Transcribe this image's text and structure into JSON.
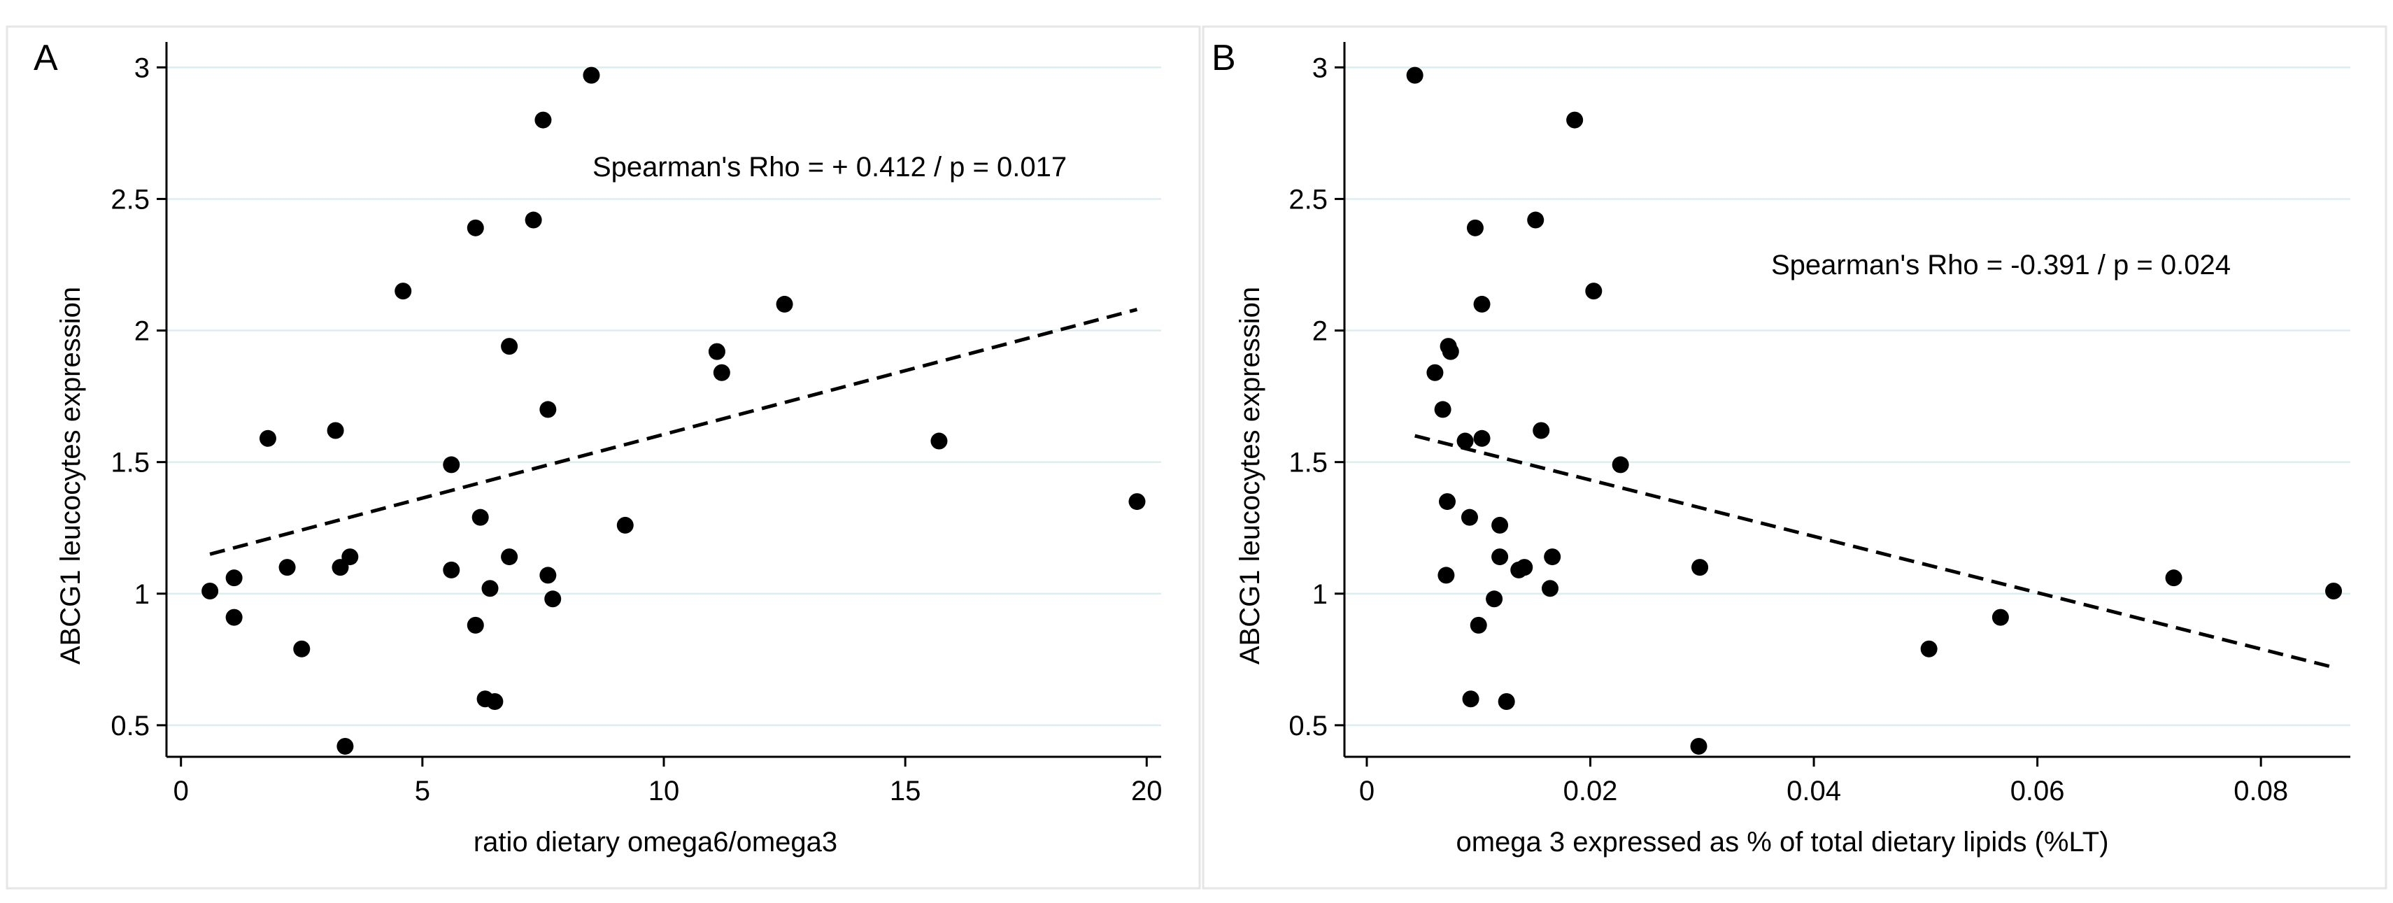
{
  "chart_data": [
    {
      "type": "scatter",
      "panel_label": "A",
      "xlabel": "ratio dietary omega6/omega3",
      "ylabel": "ABCG1 leucocytes expression",
      "xlim": [
        -0.3,
        20.3
      ],
      "ylim": [
        0.38,
        3.07
      ],
      "xticks": [
        0,
        5,
        10,
        15,
        20
      ],
      "xtick_labels": [
        "0",
        "5",
        "10",
        "15",
        "20"
      ],
      "yticks": [
        0.5,
        1,
        1.5,
        2,
        2.5,
        3
      ],
      "ytick_labels": [
        "0.5",
        "1",
        "1.5",
        "2",
        "2.5",
        "3"
      ],
      "grid": true,
      "annotation": "Spearman's Rho = + 0.412 / p = 0.017",
      "points": [
        [
          0.6,
          1.01
        ],
        [
          1.1,
          0.91
        ],
        [
          1.1,
          1.06
        ],
        [
          1.8,
          1.59
        ],
        [
          2.2,
          1.1
        ],
        [
          2.5,
          0.79
        ],
        [
          3.2,
          1.62
        ],
        [
          3.3,
          1.1
        ],
        [
          3.4,
          0.42
        ],
        [
          3.5,
          1.14
        ],
        [
          4.6,
          2.15
        ],
        [
          5.6,
          1.49
        ],
        [
          5.6,
          1.09
        ],
        [
          6.1,
          2.39
        ],
        [
          6.1,
          0.88
        ],
        [
          6.2,
          1.29
        ],
        [
          6.3,
          0.6
        ],
        [
          6.4,
          1.02
        ],
        [
          6.5,
          0.59
        ],
        [
          6.8,
          1.14
        ],
        [
          6.8,
          1.94
        ],
        [
          7.3,
          2.42
        ],
        [
          7.5,
          2.8
        ],
        [
          7.6,
          1.7
        ],
        [
          7.6,
          1.07
        ],
        [
          7.7,
          0.98
        ],
        [
          8.5,
          2.97
        ],
        [
          9.2,
          1.26
        ],
        [
          11.1,
          1.92
        ],
        [
          11.2,
          1.84
        ],
        [
          12.5,
          2.1
        ],
        [
          15.7,
          1.58
        ],
        [
          19.8,
          1.35
        ]
      ],
      "trend_line": {
        "x": [
          0.6,
          19.8
        ],
        "y": [
          1.15,
          2.08
        ]
      }
    },
    {
      "type": "scatter",
      "panel_label": "B",
      "xlabel": "omega 3 expressed as % of total dietary lipids (%LT)",
      "ylabel": "ABCG1 leucocytes expression",
      "xlim": [
        -0.002,
        0.088
      ],
      "ylim": [
        0.38,
        3.07
      ],
      "xticks": [
        0,
        0.02,
        0.04,
        0.06,
        0.08
      ],
      "xtick_labels": [
        "0",
        "0.02",
        "0.04",
        "0.06",
        "0.08"
      ],
      "yticks": [
        0.5,
        1,
        1.5,
        2,
        2.5,
        3
      ],
      "ytick_labels": [
        "0.5",
        "1",
        "1.5",
        "2",
        "2.5",
        "3"
      ],
      "grid": true,
      "annotation": "Spearman's Rho = -0.391 / p = 0.024",
      "points": [
        [
          0.0043,
          2.97
        ],
        [
          0.0061,
          1.84
        ],
        [
          0.0068,
          1.7
        ],
        [
          0.0071,
          1.07
        ],
        [
          0.0072,
          1.35
        ],
        [
          0.0073,
          1.94
        ],
        [
          0.0075,
          1.92
        ],
        [
          0.0088,
          1.58
        ],
        [
          0.0092,
          1.29
        ],
        [
          0.0093,
          0.6
        ],
        [
          0.0097,
          2.39
        ],
        [
          0.01,
          0.88
        ],
        [
          0.0103,
          1.59
        ],
        [
          0.0103,
          2.1
        ],
        [
          0.0114,
          0.98
        ],
        [
          0.0119,
          1.14
        ],
        [
          0.0119,
          1.26
        ],
        [
          0.0125,
          0.59
        ],
        [
          0.0136,
          1.09
        ],
        [
          0.0141,
          1.1
        ],
        [
          0.0151,
          2.42
        ],
        [
          0.0156,
          1.62
        ],
        [
          0.0164,
          1.02
        ],
        [
          0.0166,
          1.14
        ],
        [
          0.0186,
          2.8
        ],
        [
          0.0203,
          2.15
        ],
        [
          0.0227,
          1.49
        ],
        [
          0.0297,
          0.42
        ],
        [
          0.0298,
          1.1
        ],
        [
          0.0503,
          0.79
        ],
        [
          0.0567,
          0.91
        ],
        [
          0.0722,
          1.06
        ],
        [
          0.0865,
          1.01
        ]
      ],
      "trend_line": {
        "x": [
          0.0043,
          0.0865
        ],
        "y": [
          1.6,
          0.72
        ]
      }
    }
  ]
}
